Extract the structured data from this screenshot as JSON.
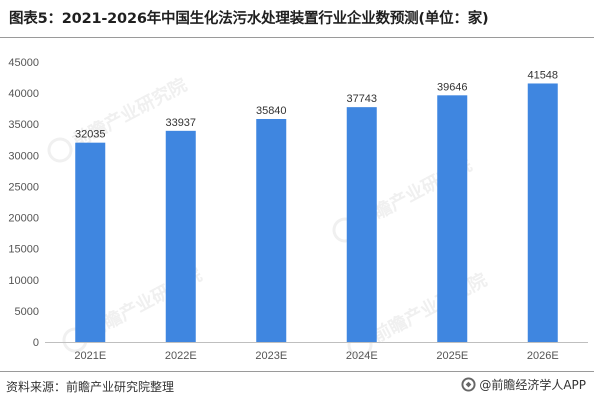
{
  "title": "图表5：2021-2026年中国生化法污水处理装置行业企业数预测(单位：家)",
  "source": "资料来源：前瞻产业研究院整理",
  "brand": "@前瞻经济学人APP",
  "colors": {
    "bar": "#3f86e0",
    "axis": "#bfbfbf",
    "text": "#333333"
  },
  "chart_data": {
    "type": "bar",
    "categories": [
      "2021E",
      "2022E",
      "2023E",
      "2024E",
      "2025E",
      "2026E"
    ],
    "values": [
      32035,
      33937,
      35840,
      37743,
      39646,
      41548
    ],
    "ylim": [
      0,
      45000
    ],
    "yticks": [
      0,
      5000,
      10000,
      15000,
      20000,
      25000,
      30000,
      35000,
      40000,
      45000
    ],
    "grid": false,
    "legend": "none"
  }
}
